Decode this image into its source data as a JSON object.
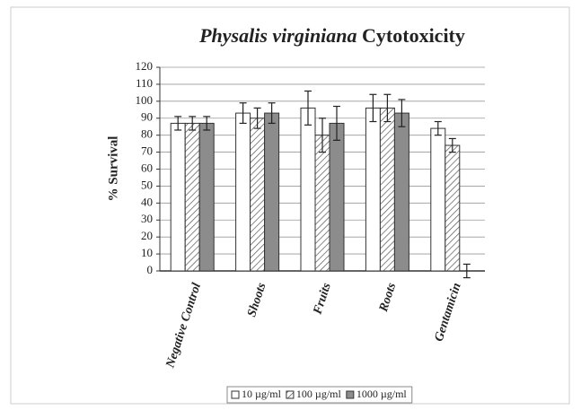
{
  "chart_data": {
    "type": "bar",
    "title": [
      "Physalis virginiana",
      "Cytotoxicity"
    ],
    "y_label": "% Survival",
    "categories": [
      "Negative Control",
      "Shoots",
      "Fruits",
      "Roots",
      "Gentamicin"
    ],
    "series": [
      {
        "name": "10 µg/ml",
        "color": "#ffffff",
        "hatch": false,
        "values": [
          87,
          93,
          96,
          96,
          84
        ],
        "errors": [
          4,
          6,
          10,
          8,
          4
        ]
      },
      {
        "name": "100 µg/ml",
        "color": "#ffffff",
        "hatch": true,
        "values": [
          87,
          90,
          80,
          96,
          74
        ],
        "errors": [
          4,
          6,
          10,
          8,
          4
        ]
      },
      {
        "name": "1000 µg/ml",
        "color": "#8c8c8c",
        "hatch": false,
        "values": [
          87,
          93,
          87,
          93,
          0
        ],
        "errors": [
          4,
          6,
          10,
          8,
          4
        ]
      }
    ],
    "ylim": [
      0,
      120
    ],
    "yticks": [
      0,
      10,
      20,
      30,
      40,
      50,
      60,
      70,
      80,
      90,
      100,
      110,
      120
    ],
    "grid": true,
    "legend": "bottom"
  }
}
